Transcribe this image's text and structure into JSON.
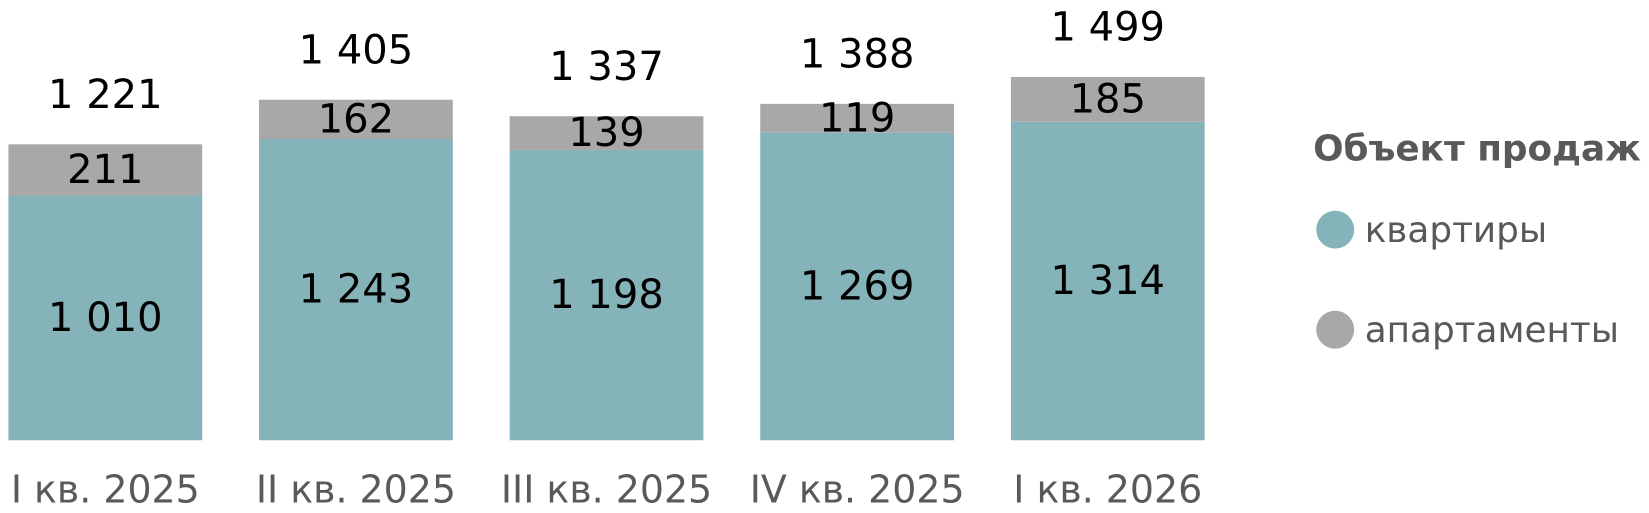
{
  "chart_data": {
    "type": "stacked-bar",
    "categories": [
      "I кв. 2025",
      "II кв. 2025",
      "III кв. 2025",
      "IV кв. 2025",
      "I кв. 2026"
    ],
    "series": [
      {
        "name": "квартиры",
        "color": "#84b3b9",
        "values": [
          1010,
          1243,
          1198,
          1269,
          1314
        ],
        "value_labels": [
          "1 010",
          "1 243",
          "1 198",
          "1 269",
          "1 314"
        ]
      },
      {
        "name": "апартаменты",
        "color": "#a8a8a8",
        "values": [
          211,
          162,
          139,
          119,
          185
        ],
        "value_labels": [
          "211",
          "162",
          "139",
          "119",
          "185"
        ]
      }
    ],
    "totals": [
      1221,
      1405,
      1337,
      1388,
      1499
    ],
    "total_labels": [
      "1 221",
      "1 405",
      "1 337",
      "1 388",
      "1 499"
    ],
    "legend_title": "Объект продаж",
    "legend_position": "right"
  }
}
